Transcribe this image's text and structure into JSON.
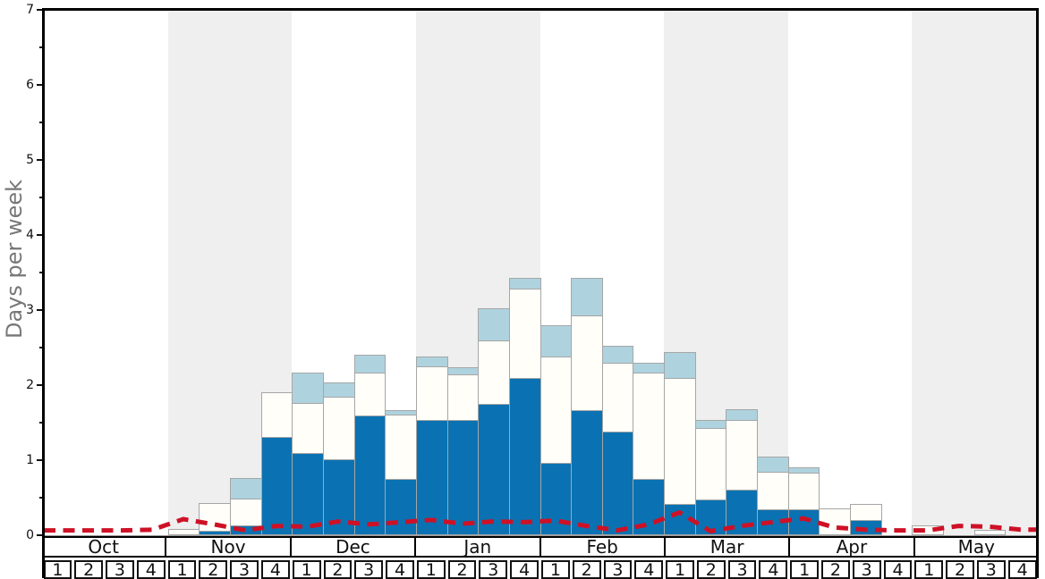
{
  "chart_data": {
    "type": "bar",
    "title": "",
    "xlabel": "",
    "ylabel": "Days per week",
    "unit": "days per week",
    "ylim": [
      0,
      7
    ],
    "y_ticks": [
      "0",
      "1",
      "2",
      "3",
      "4",
      "5",
      "6",
      "7"
    ],
    "grid": false,
    "legend": "none",
    "months": [
      "Oct",
      "Nov",
      "Dec",
      "Jan",
      "Feb",
      "Mar",
      "Apr",
      "May"
    ],
    "shaded_months": [
      "Nov",
      "Jan",
      "Mar",
      "May"
    ],
    "week_labels": [
      "1",
      "2",
      "3",
      "4"
    ],
    "stacking_note": "series values are cumulative stack tops per week, 32 weeks Oct1-May4",
    "series": [
      {
        "name": "dark-blue",
        "color": "#0a72b2",
        "values": [
          0,
          0,
          0,
          0,
          0,
          0.06,
          0.13,
          1.31,
          1.1,
          1.01,
          1.6,
          0.75,
          1.53,
          1.53,
          1.75,
          2.09,
          0.97,
          1.67,
          1.38,
          0.75,
          0.42,
          0.48,
          0.61,
          0.35,
          0.35,
          0,
          0.2,
          0,
          0,
          0,
          0,
          0
        ]
      },
      {
        "name": "white",
        "color": "#fffef9",
        "values": [
          0,
          0,
          0,
          0,
          0.08,
          0.43,
          0.49,
          1.9,
          1.76,
          1.85,
          2.17,
          1.61,
          2.25,
          2.14,
          2.59,
          3.28,
          2.38,
          2.93,
          2.3,
          2.17,
          2.09,
          1.43,
          1.54,
          0.85,
          0.83,
          0.36,
          0.42,
          0,
          0.13,
          0,
          0.07,
          0
        ]
      },
      {
        "name": "light-blue",
        "color": "#aed3df",
        "values": [
          0,
          0,
          0,
          0,
          0.08,
          0.43,
          0.76,
          1.9,
          2.17,
          2.03,
          2.4,
          1.67,
          2.38,
          2.24,
          3.02,
          3.43,
          2.8,
          3.43,
          2.52,
          2.3,
          2.44,
          1.54,
          1.68,
          1.05,
          0.91,
          0.36,
          0.42,
          0,
          0.13,
          0,
          0.07,
          0
        ]
      }
    ],
    "red_line": {
      "name": "dashed-red-line",
      "color": "#ce1126",
      "style": "dashed",
      "values": [
        0.04,
        0.04,
        0.04,
        0.05,
        0.19,
        0.12,
        0.04,
        0.1,
        0.09,
        0.16,
        0.12,
        0.15,
        0.18,
        0.13,
        0.16,
        0.15,
        0.17,
        0.1,
        0.04,
        0.12,
        0.28,
        0.03,
        0.1,
        0.15,
        0.2,
        0.08,
        0.05,
        0.04,
        0.04,
        0.1,
        0.09,
        0.05
      ]
    },
    "colors": {
      "band_gray": "#efefef",
      "bar_border": "#a6a6a6",
      "axis_black": "#000000",
      "ylabel_gray": "#777777"
    }
  }
}
